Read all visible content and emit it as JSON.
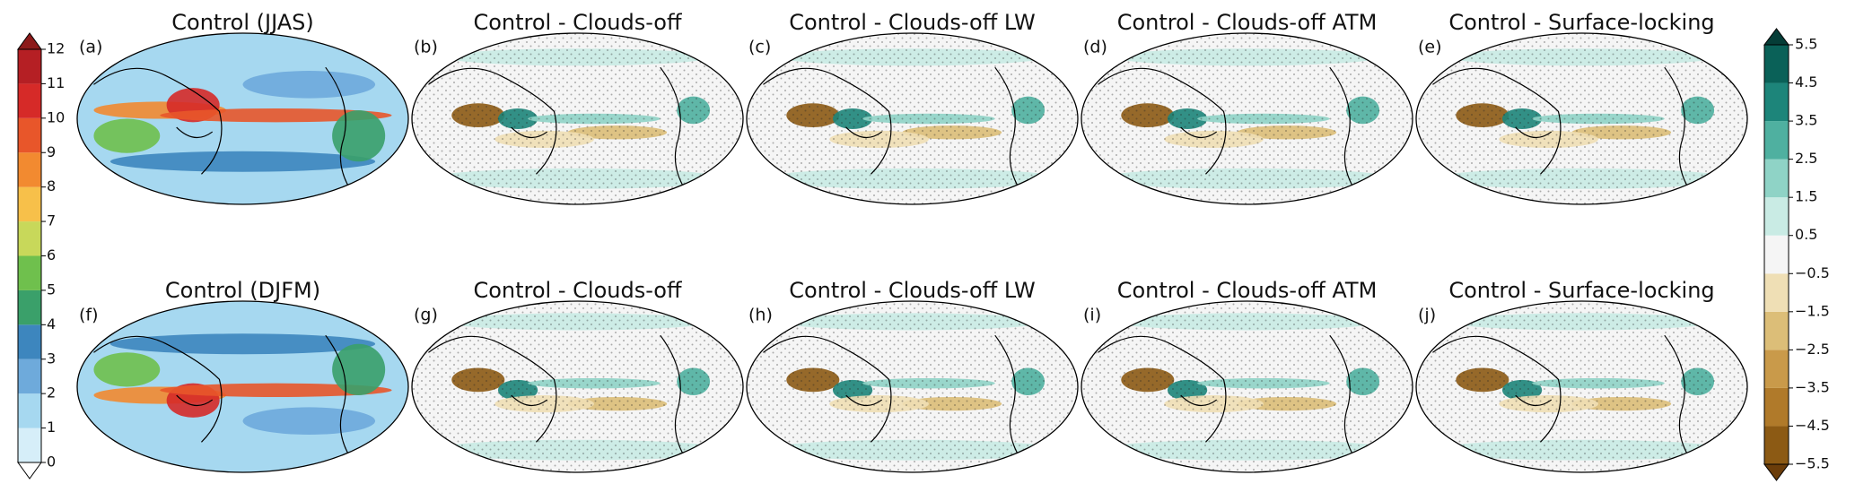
{
  "colorbar_left": {
    "ticks": [
      0,
      1,
      2,
      3,
      4,
      5,
      6,
      7,
      8,
      9,
      10,
      11,
      12
    ],
    "colors": [
      "#d6eef9",
      "#a6d8f0",
      "#6eaadb",
      "#3d86be",
      "#3aa06a",
      "#6fc04d",
      "#c8d85a",
      "#f7c04a",
      "#f28a30",
      "#e8562a",
      "#d62a28",
      "#b51f24"
    ],
    "extend_colors": [
      "#ffffff",
      "#8c1a1a"
    ]
  },
  "colorbar_right": {
    "ticks": [
      {
        "value": -5.5,
        "label": "−5.5"
      },
      {
        "value": -4.5,
        "label": "−4.5"
      },
      {
        "value": -3.5,
        "label": "−3.5"
      },
      {
        "value": -2.5,
        "label": "−2.5"
      },
      {
        "value": -1.5,
        "label": "−1.5"
      },
      {
        "value": -0.5,
        "label": "−0.5"
      },
      0.5,
      1.5,
      2.5,
      3.5,
      4.5,
      5.5
    ],
    "colors": [
      "#8c5a14",
      "#b07a2a",
      "#c99a4a",
      "#dcbe78",
      "#efdfb5",
      "#f5f5f5",
      "#c9ebe4",
      "#8fd3c6",
      "#4fb0a0",
      "#1d857a",
      "#0a6158"
    ],
    "extend_colors": [
      "#6b3d0a",
      "#053d37"
    ]
  },
  "panels": [
    {
      "label": "(a)",
      "title": "Control (JJAS)"
    },
    {
      "label": "(b)",
      "title": "Control - Clouds-off"
    },
    {
      "label": "(c)",
      "title": "Control - Clouds-off LW"
    },
    {
      "label": "(d)",
      "title": "Control - Clouds-off ATM"
    },
    {
      "label": "(e)",
      "title": "Control - Surface-locking"
    },
    {
      "label": "(f)",
      "title": "Control (DJFM)"
    },
    {
      "label": "(g)",
      "title": "Control - Clouds-off"
    },
    {
      "label": "(h)",
      "title": "Control - Clouds-off LW"
    },
    {
      "label": "(i)",
      "title": "Control - Clouds-off ATM"
    },
    {
      "label": "(j)",
      "title": "Control - Surface-locking"
    }
  ]
}
